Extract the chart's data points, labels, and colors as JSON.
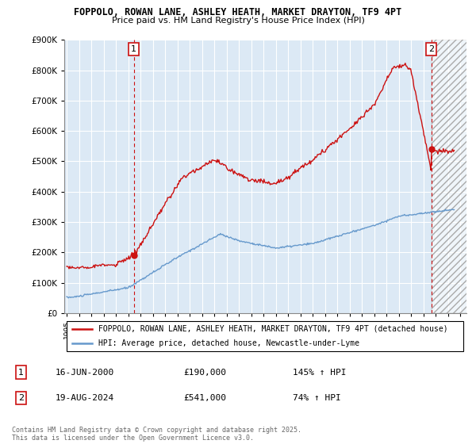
{
  "title": "FOPPOLO, ROWAN LANE, ASHLEY HEATH, MARKET DRAYTON, TF9 4PT",
  "subtitle": "Price paid vs. HM Land Registry's House Price Index (HPI)",
  "background_color": "#ffffff",
  "chart_bg_color": "#dce9f5",
  "grid_color": "#ffffff",
  "hpi_line_color": "#6699cc",
  "price_line_color": "#cc1111",
  "annotation1_date": "16-JUN-2000",
  "annotation1_price": 190000,
  "annotation1_note": "145% ↑ HPI",
  "annotation2_date": "19-AUG-2024",
  "annotation2_price": 541000,
  "annotation2_note": "74% ↑ HPI",
  "legend_line1": "FOPPOLO, ROWAN LANE, ASHLEY HEATH, MARKET DRAYTON, TF9 4PT (detached house)",
  "legend_line2": "HPI: Average price, detached house, Newcastle-under-Lyme",
  "footer": "Contains HM Land Registry data © Crown copyright and database right 2025.\nThis data is licensed under the Open Government Licence v3.0.",
  "ylim": [
    0,
    900000
  ],
  "xlim_start": 1994.8,
  "xlim_end": 2027.5,
  "ann1_x": 2000.46,
  "ann2_x": 2024.63,
  "ann1_y": 190000,
  "ann2_y": 541000
}
